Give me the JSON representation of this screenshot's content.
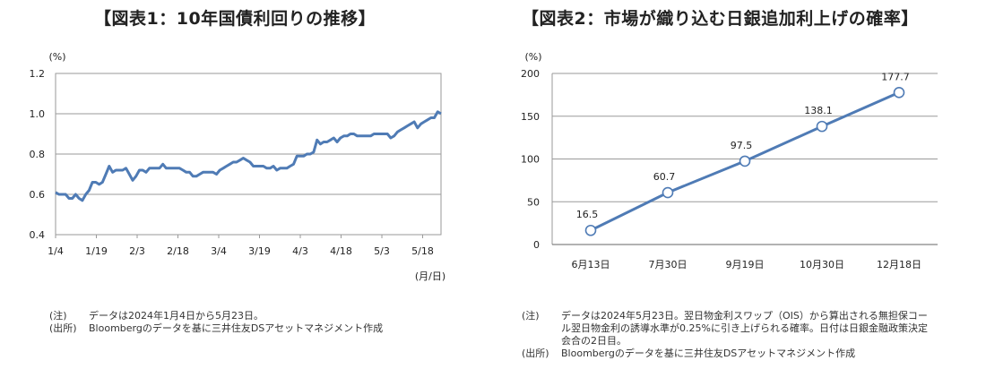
{
  "chart_data": [
    {
      "type": "line",
      "title": "【図表1：10年国債利回りの推移】",
      "ylabel": "(%)",
      "xlabel": "(月/日)",
      "ylim": [
        0.4,
        1.2
      ],
      "yticks": [
        "0.4",
        "0.6",
        "0.8",
        "1.0",
        "1.2"
      ],
      "xticks": [
        "1/4",
        "1/19",
        "2/3",
        "2/18",
        "3/4",
        "3/19",
        "4/3",
        "4/18",
        "5/3",
        "5/18"
      ],
      "grid": true,
      "line_color": "#4f7bb5",
      "series": [
        {
          "values": [
            0.61,
            0.6,
            0.6,
            0.6,
            0.58,
            0.58,
            0.6,
            0.58,
            0.57,
            0.6,
            0.62,
            0.66,
            0.66,
            0.65,
            0.66,
            0.7,
            0.74,
            0.71,
            0.72,
            0.72,
            0.72,
            0.73,
            0.7,
            0.67,
            0.69,
            0.72,
            0.72,
            0.71,
            0.73,
            0.73,
            0.73,
            0.73,
            0.75,
            0.73,
            0.73,
            0.73,
            0.73,
            0.73,
            0.72,
            0.71,
            0.71,
            0.69,
            0.69,
            0.7,
            0.71,
            0.71,
            0.71,
            0.71,
            0.7,
            0.72,
            0.73,
            0.74,
            0.75,
            0.76,
            0.76,
            0.77,
            0.78,
            0.77,
            0.76,
            0.74,
            0.74,
            0.74,
            0.74,
            0.73,
            0.73,
            0.74,
            0.72,
            0.73,
            0.73,
            0.73,
            0.74,
            0.75,
            0.79,
            0.79,
            0.79,
            0.8,
            0.8,
            0.81,
            0.87,
            0.85,
            0.86,
            0.86,
            0.87,
            0.88,
            0.86,
            0.88,
            0.89,
            0.89,
            0.9,
            0.9,
            0.89,
            0.89,
            0.89,
            0.89,
            0.89,
            0.9,
            0.9,
            0.9,
            0.9,
            0.9,
            0.88,
            0.89,
            0.91,
            0.92,
            0.93,
            0.94,
            0.95,
            0.96,
            0.93,
            0.95,
            0.96,
            0.97,
            0.98,
            0.98,
            1.01,
            1.0
          ]
        }
      ]
    },
    {
      "type": "line",
      "title": "【図表2：市場が織り込む日銀追加利上げの確率】",
      "ylabel": "(%)",
      "ylim": [
        0,
        200
      ],
      "yticks": [
        "0",
        "50",
        "100",
        "150",
        "200"
      ],
      "categories": [
        "6月13日",
        "7月30日",
        "9月19日",
        "10月30日",
        "12月18日"
      ],
      "grid": true,
      "line_color": "#4f7bb5",
      "series": [
        {
          "values": [
            16.5,
            60.7,
            97.5,
            138.1,
            177.7
          ],
          "labels": [
            "16.5",
            "60.7",
            "97.5",
            "138.1",
            "177.7"
          ]
        }
      ]
    }
  ],
  "notes1": [
    {
      "label": "(注)",
      "text": "データは2024年1月4日から5月23日。"
    },
    {
      "label": "(出所)",
      "text": "Bloombergのデータを基に三井住友DSアセットマネジメント作成"
    }
  ],
  "notes2": [
    {
      "label": "(注)",
      "text": "データは2024年5月23日。翌日物金利スワップ（OIS）から算出される無担保コール翌日物金利の誘導水準が0.25%に引き上げられる確率。日付は日銀金融政策決定会合の2日目。"
    },
    {
      "label": "(出所)",
      "text": "Bloombergのデータを基に三井住友DSアセットマネジメント作成"
    }
  ]
}
